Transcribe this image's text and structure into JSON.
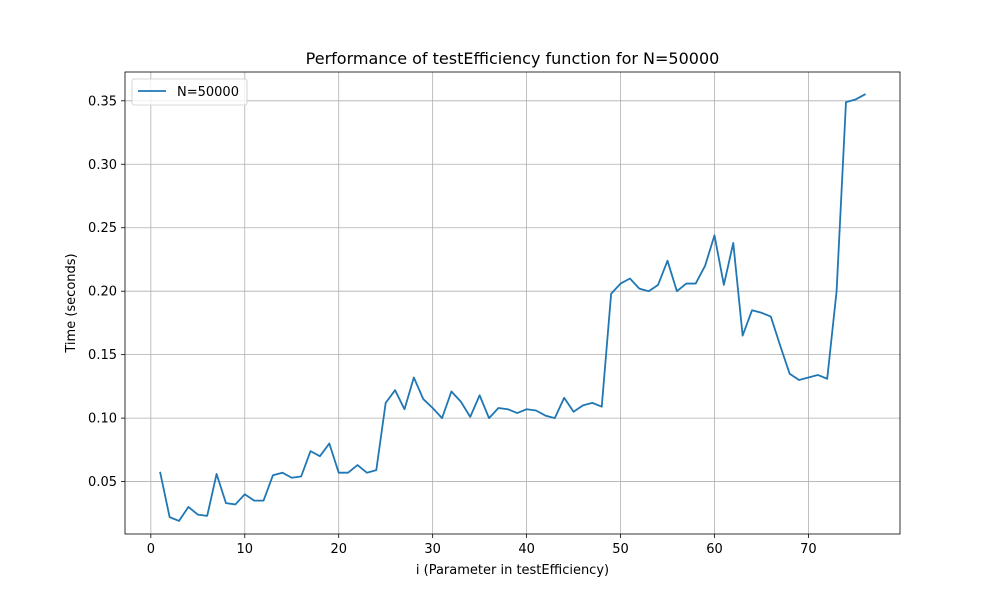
{
  "chart_data": {
    "type": "line",
    "title": "Performance of testEfficiency function for N=50000",
    "xlabel": "i (Parameter in testEfficiency)",
    "ylabel": "Time (seconds)",
    "xlim": [
      -2.75,
      79.75
    ],
    "ylim": [
      0.0087,
      0.3727
    ],
    "xticks": [
      0,
      10,
      20,
      30,
      40,
      50,
      60,
      70
    ],
    "xtick_labels": [
      "0",
      "10",
      "20",
      "30",
      "40",
      "50",
      "60",
      "70"
    ],
    "yticks": [
      0.05,
      0.1,
      0.15,
      0.2,
      0.25,
      0.3,
      0.35
    ],
    "ytick_labels": [
      "0.05",
      "0.10",
      "0.15",
      "0.20",
      "0.25",
      "0.30",
      "0.35"
    ],
    "grid": true,
    "legend_position": "upper-left",
    "series": [
      {
        "name": "N=50000",
        "color": "#1f77b4",
        "x": [
          1,
          2,
          3,
          4,
          5,
          6,
          7,
          8,
          9,
          10,
          11,
          12,
          13,
          14,
          15,
          16,
          17,
          18,
          19,
          20,
          21,
          22,
          23,
          24,
          25,
          26,
          27,
          28,
          29,
          30,
          31,
          32,
          33,
          34,
          35,
          36,
          37,
          38,
          39,
          40,
          41,
          42,
          43,
          44,
          45,
          46,
          47,
          48,
          49,
          50,
          51,
          52,
          53,
          54,
          55,
          56,
          57,
          58,
          59,
          60,
          61,
          62,
          63,
          64,
          65,
          66,
          67,
          68,
          69,
          70,
          71,
          72,
          73,
          74,
          75,
          76
        ],
        "y": [
          0.057,
          0.022,
          0.019,
          0.03,
          0.024,
          0.023,
          0.056,
          0.033,
          0.032,
          0.04,
          0.035,
          0.035,
          0.055,
          0.057,
          0.053,
          0.054,
          0.074,
          0.07,
          0.08,
          0.057,
          0.057,
          0.063,
          0.057,
          0.059,
          0.112,
          0.122,
          0.107,
          0.132,
          0.115,
          0.108,
          0.1,
          0.121,
          0.113,
          0.101,
          0.118,
          0.1,
          0.108,
          0.107,
          0.104,
          0.107,
          0.106,
          0.102,
          0.1,
          0.116,
          0.105,
          0.11,
          0.112,
          0.109,
          0.198,
          0.206,
          0.21,
          0.202,
          0.2,
          0.205,
          0.224,
          0.2,
          0.206,
          0.206,
          0.22,
          0.244,
          0.205,
          0.238,
          0.165,
          0.185,
          0.183,
          0.18,
          0.157,
          0.135,
          0.13,
          0.132,
          0.134,
          0.131,
          0.2,
          0.349,
          0.351,
          0.355
        ]
      }
    ]
  }
}
